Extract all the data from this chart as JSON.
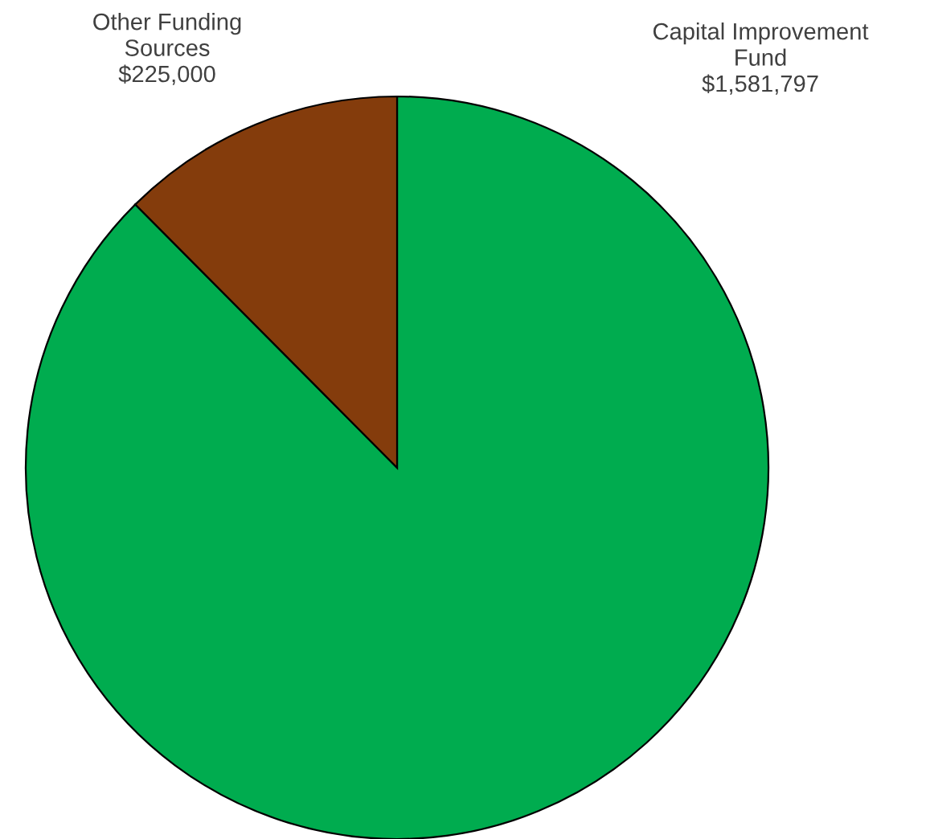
{
  "chart_data": {
    "type": "pie",
    "categories": [
      "Capital Improvement Fund",
      "Other Funding Sources"
    ],
    "values": [
      1581797,
      225000
    ],
    "colors": [
      "#00ac4f",
      "#843c0c"
    ],
    "value_labels": [
      "$1,581,797",
      "$225,000"
    ]
  }
}
